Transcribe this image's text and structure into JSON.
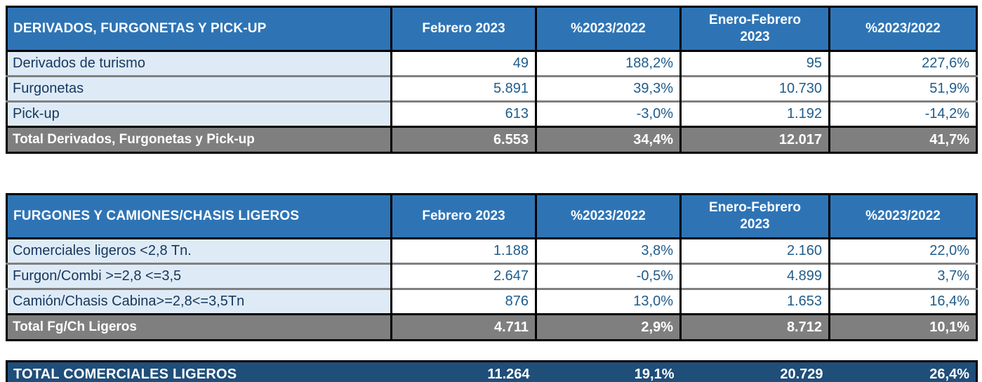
{
  "colors": {
    "header_blue": "#2E74B5",
    "row_light_blue": "#DEEBF7",
    "total_gray": "#7F7F7F",
    "grand_total_navy": "#1F4E79",
    "label_text": "#17375D",
    "number_text": "#1F5C8B",
    "grid_gray": "#808080",
    "grid_black": "#000000"
  },
  "tables": [
    {
      "title": "DERIVADOS, FURGONETAS Y PICK-UP",
      "headers": [
        "Febrero 2023",
        "%2023/2022",
        "Enero-Febrero 2023",
        "%2023/2022"
      ],
      "rows": [
        {
          "label": "Derivados de turismo",
          "values": [
            "49",
            "188,2%",
            "95",
            "227,6%"
          ]
        },
        {
          "label": "Furgonetas",
          "values": [
            "5.891",
            "39,3%",
            "10.730",
            "51,9%"
          ]
        },
        {
          "label": "Pick-up",
          "values": [
            "613",
            "-3,0%",
            "1.192",
            "-14,2%"
          ]
        }
      ],
      "total": {
        "label": "Total Derivados, Furgonetas y Pick-up",
        "values": [
          "6.553",
          "34,4%",
          "12.017",
          "41,7%"
        ]
      }
    },
    {
      "title": "FURGONES Y CAMIONES/CHASIS LIGEROS",
      "headers": [
        "Febrero 2023",
        "%2023/2022",
        "Enero-Febrero 2023",
        "%2023/2022"
      ],
      "rows": [
        {
          "label": "Comerciales ligeros <2,8 Tn.",
          "values": [
            "1.188",
            "3,8%",
            "2.160",
            "22,0%"
          ]
        },
        {
          "label": "Furgon/Combi >=2,8 <=3,5",
          "values": [
            "2.647",
            "-0,5%",
            "4.899",
            "3,7%"
          ]
        },
        {
          "label": "Camión/Chasis Cabina>=2,8<=3,5Tn",
          "values": [
            "876",
            "13,0%",
            "1.653",
            "16,4%"
          ]
        }
      ],
      "total": {
        "label": "Total Fg/Ch Ligeros",
        "values": [
          "4.711",
          "2,9%",
          "8.712",
          "10,1%"
        ]
      }
    }
  ],
  "grand_total": {
    "label": "TOTAL COMERCIALES LIGEROS",
    "values": [
      "11.264",
      "19,1%",
      "20.729",
      "26,4%"
    ]
  }
}
